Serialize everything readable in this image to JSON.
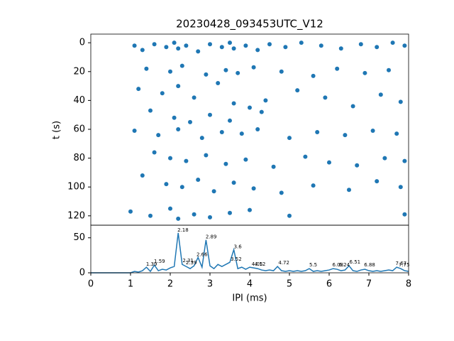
{
  "chart_data": [
    {
      "type": "scatter",
      "title": "20230428_093453UTC_V12",
      "ylabel": "t (s)",
      "color": "#1f77b4",
      "xlim": [
        0,
        8
      ],
      "ylim": [
        126.5,
        -6
      ],
      "yticks": [
        0,
        20,
        40,
        60,
        80,
        100,
        120
      ],
      "x": [
        1.1,
        1.3,
        1.6,
        1.9,
        2.1,
        2.2,
        2.4,
        2.7,
        3.0,
        3.3,
        3.5,
        3.6,
        3.9,
        4.2,
        4.5,
        4.9,
        5.3,
        5.8,
        6.3,
        6.8,
        7.2,
        7.6,
        7.9,
        1.4,
        2.0,
        2.3,
        2.9,
        3.4,
        3.7,
        4.1,
        4.8,
        5.6,
        6.2,
        6.9,
        7.5,
        1.2,
        1.8,
        2.2,
        2.6,
        3.2,
        3.6,
        4.0,
        4.4,
        5.2,
        5.9,
        6.6,
        7.3,
        7.8,
        1.5,
        2.1,
        2.5,
        3.0,
        3.5,
        4.3,
        1.1,
        1.7,
        2.2,
        2.8,
        3.3,
        3.8,
        4.2,
        5.0,
        5.7,
        6.4,
        7.1,
        7.7,
        1.6,
        2.0,
        2.4,
        2.9,
        3.4,
        3.9,
        4.6,
        5.4,
        6.0,
        6.7,
        7.4,
        7.9,
        1.3,
        1.9,
        2.3,
        2.7,
        3.1,
        3.6,
        4.1,
        4.8,
        5.6,
        6.5,
        7.2,
        7.8,
        1.0,
        1.5,
        2.0,
        2.2,
        2.6,
        3.0,
        3.5,
        4.0,
        5.0,
        7.9
      ],
      "y": [
        2,
        5,
        1,
        3,
        0,
        4,
        2,
        6,
        1,
        3,
        0,
        4,
        2,
        5,
        1,
        3,
        0,
        2,
        4,
        1,
        3,
        0,
        2,
        18,
        20,
        16,
        22,
        19,
        21,
        17,
        20,
        23,
        18,
        21,
        19,
        32,
        35,
        30,
        38,
        28,
        42,
        45,
        40,
        33,
        38,
        44,
        36,
        41,
        47,
        52,
        55,
        50,
        54,
        48,
        61,
        64,
        60,
        66,
        62,
        63,
        60,
        66,
        62,
        64,
        61,
        63,
        76,
        80,
        82,
        78,
        84,
        81,
        86,
        79,
        83,
        85,
        80,
        82,
        92,
        98,
        100,
        95,
        103,
        97,
        101,
        104,
        99,
        102,
        96,
        100,
        117,
        120,
        115,
        122,
        119,
        121,
        118,
        116,
        120,
        119
      ]
    },
    {
      "type": "line",
      "xlabel": "IPI (ms)",
      "color": "#1f77b4",
      "xlim": [
        0,
        8
      ],
      "xticks": [
        0,
        1,
        2,
        3,
        4,
        5,
        6,
        7,
        8
      ],
      "ylim": [
        0,
        68
      ],
      "yticks": [
        0,
        50
      ],
      "x": [
        0,
        0.1,
        0.2,
        0.3,
        0.4,
        0.5,
        0.6,
        0.7,
        0.8,
        0.9,
        1.0,
        1.1,
        1.2,
        1.3,
        1.4,
        1.5,
        1.6,
        1.7,
        1.8,
        1.9,
        2.0,
        2.1,
        2.2,
        2.3,
        2.4,
        2.5,
        2.6,
        2.7,
        2.8,
        2.9,
        3.0,
        3.1,
        3.2,
        3.3,
        3.4,
        3.5,
        3.6,
        3.7,
        3.8,
        3.9,
        4.0,
        4.1,
        4.2,
        4.3,
        4.4,
        4.5,
        4.6,
        4.7,
        4.8,
        4.9,
        5.0,
        5.1,
        5.2,
        5.3,
        5.4,
        5.5,
        5.6,
        5.7,
        5.8,
        5.9,
        6.0,
        6.1,
        6.2,
        6.3,
        6.4,
        6.5,
        6.6,
        6.7,
        6.8,
        6.9,
        7.0,
        7.1,
        7.2,
        7.3,
        7.4,
        7.5,
        7.6,
        7.7,
        7.8,
        7.9,
        8.0
      ],
      "values": [
        0,
        0,
        0,
        0,
        0,
        0,
        0,
        0,
        0,
        0,
        0,
        2,
        1,
        3,
        8,
        2,
        11,
        3,
        5,
        4,
        7,
        9,
        57,
        12,
        9,
        6,
        10,
        22,
        8,
        47,
        10,
        6,
        12,
        9,
        12,
        15,
        33,
        6,
        8,
        5,
        8,
        7,
        6,
        4,
        3,
        4,
        3,
        9,
        3,
        2,
        3,
        2,
        3,
        2,
        3,
        6,
        2,
        3,
        2,
        3,
        4,
        6,
        5,
        3,
        4,
        10,
        3,
        2,
        4,
        5,
        3,
        2,
        3,
        2,
        3,
        4,
        3,
        8,
        6,
        3,
        2
      ],
      "annotations": [
        {
          "x": 1.39,
          "y": 8
        },
        {
          "x": 1.59,
          "y": 12
        },
        {
          "x": 2.18,
          "y": 57
        },
        {
          "x": 2.31,
          "y": 13
        },
        {
          "x": 2.39,
          "y": 10
        },
        {
          "x": 2.66,
          "y": 22
        },
        {
          "x": 2.89,
          "y": 47
        },
        {
          "x": 3.52,
          "y": 15
        },
        {
          "x": 3.6,
          "y": 33
        },
        {
          "x": 4.05,
          "y": 8
        },
        {
          "x": 4.12,
          "y": 8
        },
        {
          "x": 4.72,
          "y": 10
        },
        {
          "x": 5.5,
          "y": 7
        },
        {
          "x": 6.08,
          "y": 7
        },
        {
          "x": 6.24,
          "y": 7
        },
        {
          "x": 6.51,
          "y": 11
        },
        {
          "x": 6.88,
          "y": 7
        },
        {
          "x": 7.67,
          "y": 9
        },
        {
          "x": 7.75,
          "y": 7
        }
      ]
    }
  ]
}
